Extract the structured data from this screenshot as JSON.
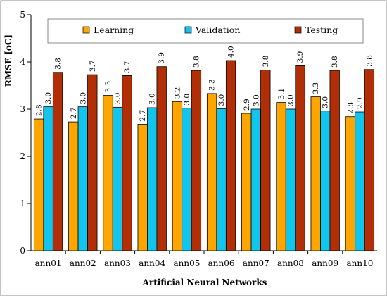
{
  "chart_data": {
    "type": "bar",
    "xlabel": "Artificial Neural Networks",
    "ylabel": "RMSE [oC]",
    "ylim": [
      0,
      5
    ],
    "yticks": [
      "0",
      "1",
      "2",
      "3",
      "4",
      "5"
    ],
    "grid": false,
    "legend_position": "top",
    "categories": [
      "ann01",
      "ann02",
      "ann03",
      "ann04",
      "ann05",
      "ann06",
      "ann07",
      "ann08",
      "ann09",
      "ann10"
    ],
    "series": [
      {
        "name": "Learning",
        "color": "#ffa500",
        "values": [
          2.79,
          2.73,
          3.29,
          2.68,
          3.16,
          3.33,
          2.91,
          3.14,
          3.26,
          2.84
        ],
        "labels": [
          "2.8",
          "2.7",
          "3.3",
          "2.7",
          "3.2",
          "3.3",
          "2.9",
          "3.1",
          "3.3",
          "2.8"
        ]
      },
      {
        "name": "Validation",
        "color": "#11c5ee",
        "values": [
          3.05,
          3.05,
          3.04,
          3.03,
          3.02,
          3.01,
          3.0,
          3.0,
          2.96,
          2.94
        ],
        "labels": [
          "3.0",
          "3.0",
          "3.0",
          "3.0",
          "3.0",
          "3.0",
          "3.0",
          "3.0",
          "3.0",
          "2.9"
        ]
      },
      {
        "name": "Testing",
        "color": "#b22e06",
        "values": [
          3.78,
          3.73,
          3.71,
          3.9,
          3.82,
          4.03,
          3.83,
          3.92,
          3.82,
          3.84
        ],
        "labels": [
          "3.8",
          "3.7",
          "3.7",
          "3.9",
          "3.8",
          "4.0",
          "3.8",
          "3.9",
          "3.8",
          "3.8"
        ]
      }
    ]
  }
}
